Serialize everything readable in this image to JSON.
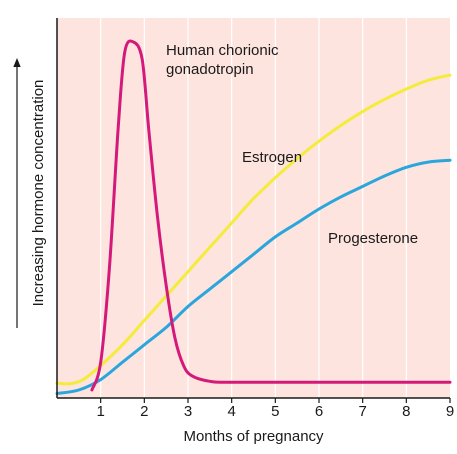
{
  "chart_data": {
    "type": "line",
    "xlabel": "Months of pregnancy",
    "ylabel": "Increasing hormone concentration",
    "xlim": [
      0,
      9
    ],
    "ylim": [
      0,
      1
    ],
    "x_ticks": [
      1,
      2,
      3,
      4,
      5,
      6,
      7,
      8,
      9
    ],
    "y_ticks_shown": false,
    "grid": "vertical",
    "colors": {
      "background": "#fde4de",
      "gridline": "#ffffff",
      "axis": "#1a1a1a"
    },
    "series": [
      {
        "name": "Human chorionic gonadotropin",
        "label_lines": [
          "Human chorionic",
          "gonadotropin"
        ],
        "color": "#d4197a",
        "points": [
          [
            0.8,
            0.0
          ],
          [
            1.0,
            0.08
          ],
          [
            1.2,
            0.35
          ],
          [
            1.4,
            0.75
          ],
          [
            1.55,
            0.97
          ],
          [
            1.75,
            1.0
          ],
          [
            1.95,
            0.95
          ],
          [
            2.1,
            0.75
          ],
          [
            2.3,
            0.5
          ],
          [
            2.5,
            0.3
          ],
          [
            2.7,
            0.15
          ],
          [
            2.9,
            0.07
          ],
          [
            3.1,
            0.04
          ],
          [
            3.5,
            0.025
          ],
          [
            4.0,
            0.022
          ],
          [
            6.0,
            0.022
          ],
          [
            9.0,
            0.022
          ]
        ]
      },
      {
        "name": "Estrogen",
        "label_lines": [
          "Estrogen"
        ],
        "color": "#f4ec3c",
        "points": [
          [
            0.0,
            0.02
          ],
          [
            0.3,
            0.018
          ],
          [
            0.6,
            0.03
          ],
          [
            1.0,
            0.07
          ],
          [
            1.5,
            0.13
          ],
          [
            2.0,
            0.2
          ],
          [
            2.5,
            0.27
          ],
          [
            3.0,
            0.34
          ],
          [
            3.5,
            0.41
          ],
          [
            4.0,
            0.48
          ],
          [
            4.5,
            0.55
          ],
          [
            5.0,
            0.61
          ],
          [
            5.5,
            0.665
          ],
          [
            6.0,
            0.715
          ],
          [
            6.5,
            0.76
          ],
          [
            7.0,
            0.8
          ],
          [
            7.5,
            0.835
          ],
          [
            8.0,
            0.865
          ],
          [
            8.5,
            0.89
          ],
          [
            9.0,
            0.905
          ]
        ]
      },
      {
        "name": "Progesterone",
        "label_lines": [
          "Progesterone"
        ],
        "color": "#2aa6dd",
        "points": [
          [
            0.0,
            -0.01
          ],
          [
            0.5,
            0.0
          ],
          [
            1.0,
            0.03
          ],
          [
            1.5,
            0.08
          ],
          [
            2.0,
            0.13
          ],
          [
            2.5,
            0.18
          ],
          [
            3.0,
            0.24
          ],
          [
            3.5,
            0.29
          ],
          [
            4.0,
            0.34
          ],
          [
            4.5,
            0.39
          ],
          [
            5.0,
            0.44
          ],
          [
            5.5,
            0.48
          ],
          [
            6.0,
            0.52
          ],
          [
            6.5,
            0.555
          ],
          [
            7.0,
            0.585
          ],
          [
            7.5,
            0.615
          ],
          [
            8.0,
            0.64
          ],
          [
            8.5,
            0.655
          ],
          [
            9.0,
            0.66
          ]
        ]
      }
    ]
  }
}
